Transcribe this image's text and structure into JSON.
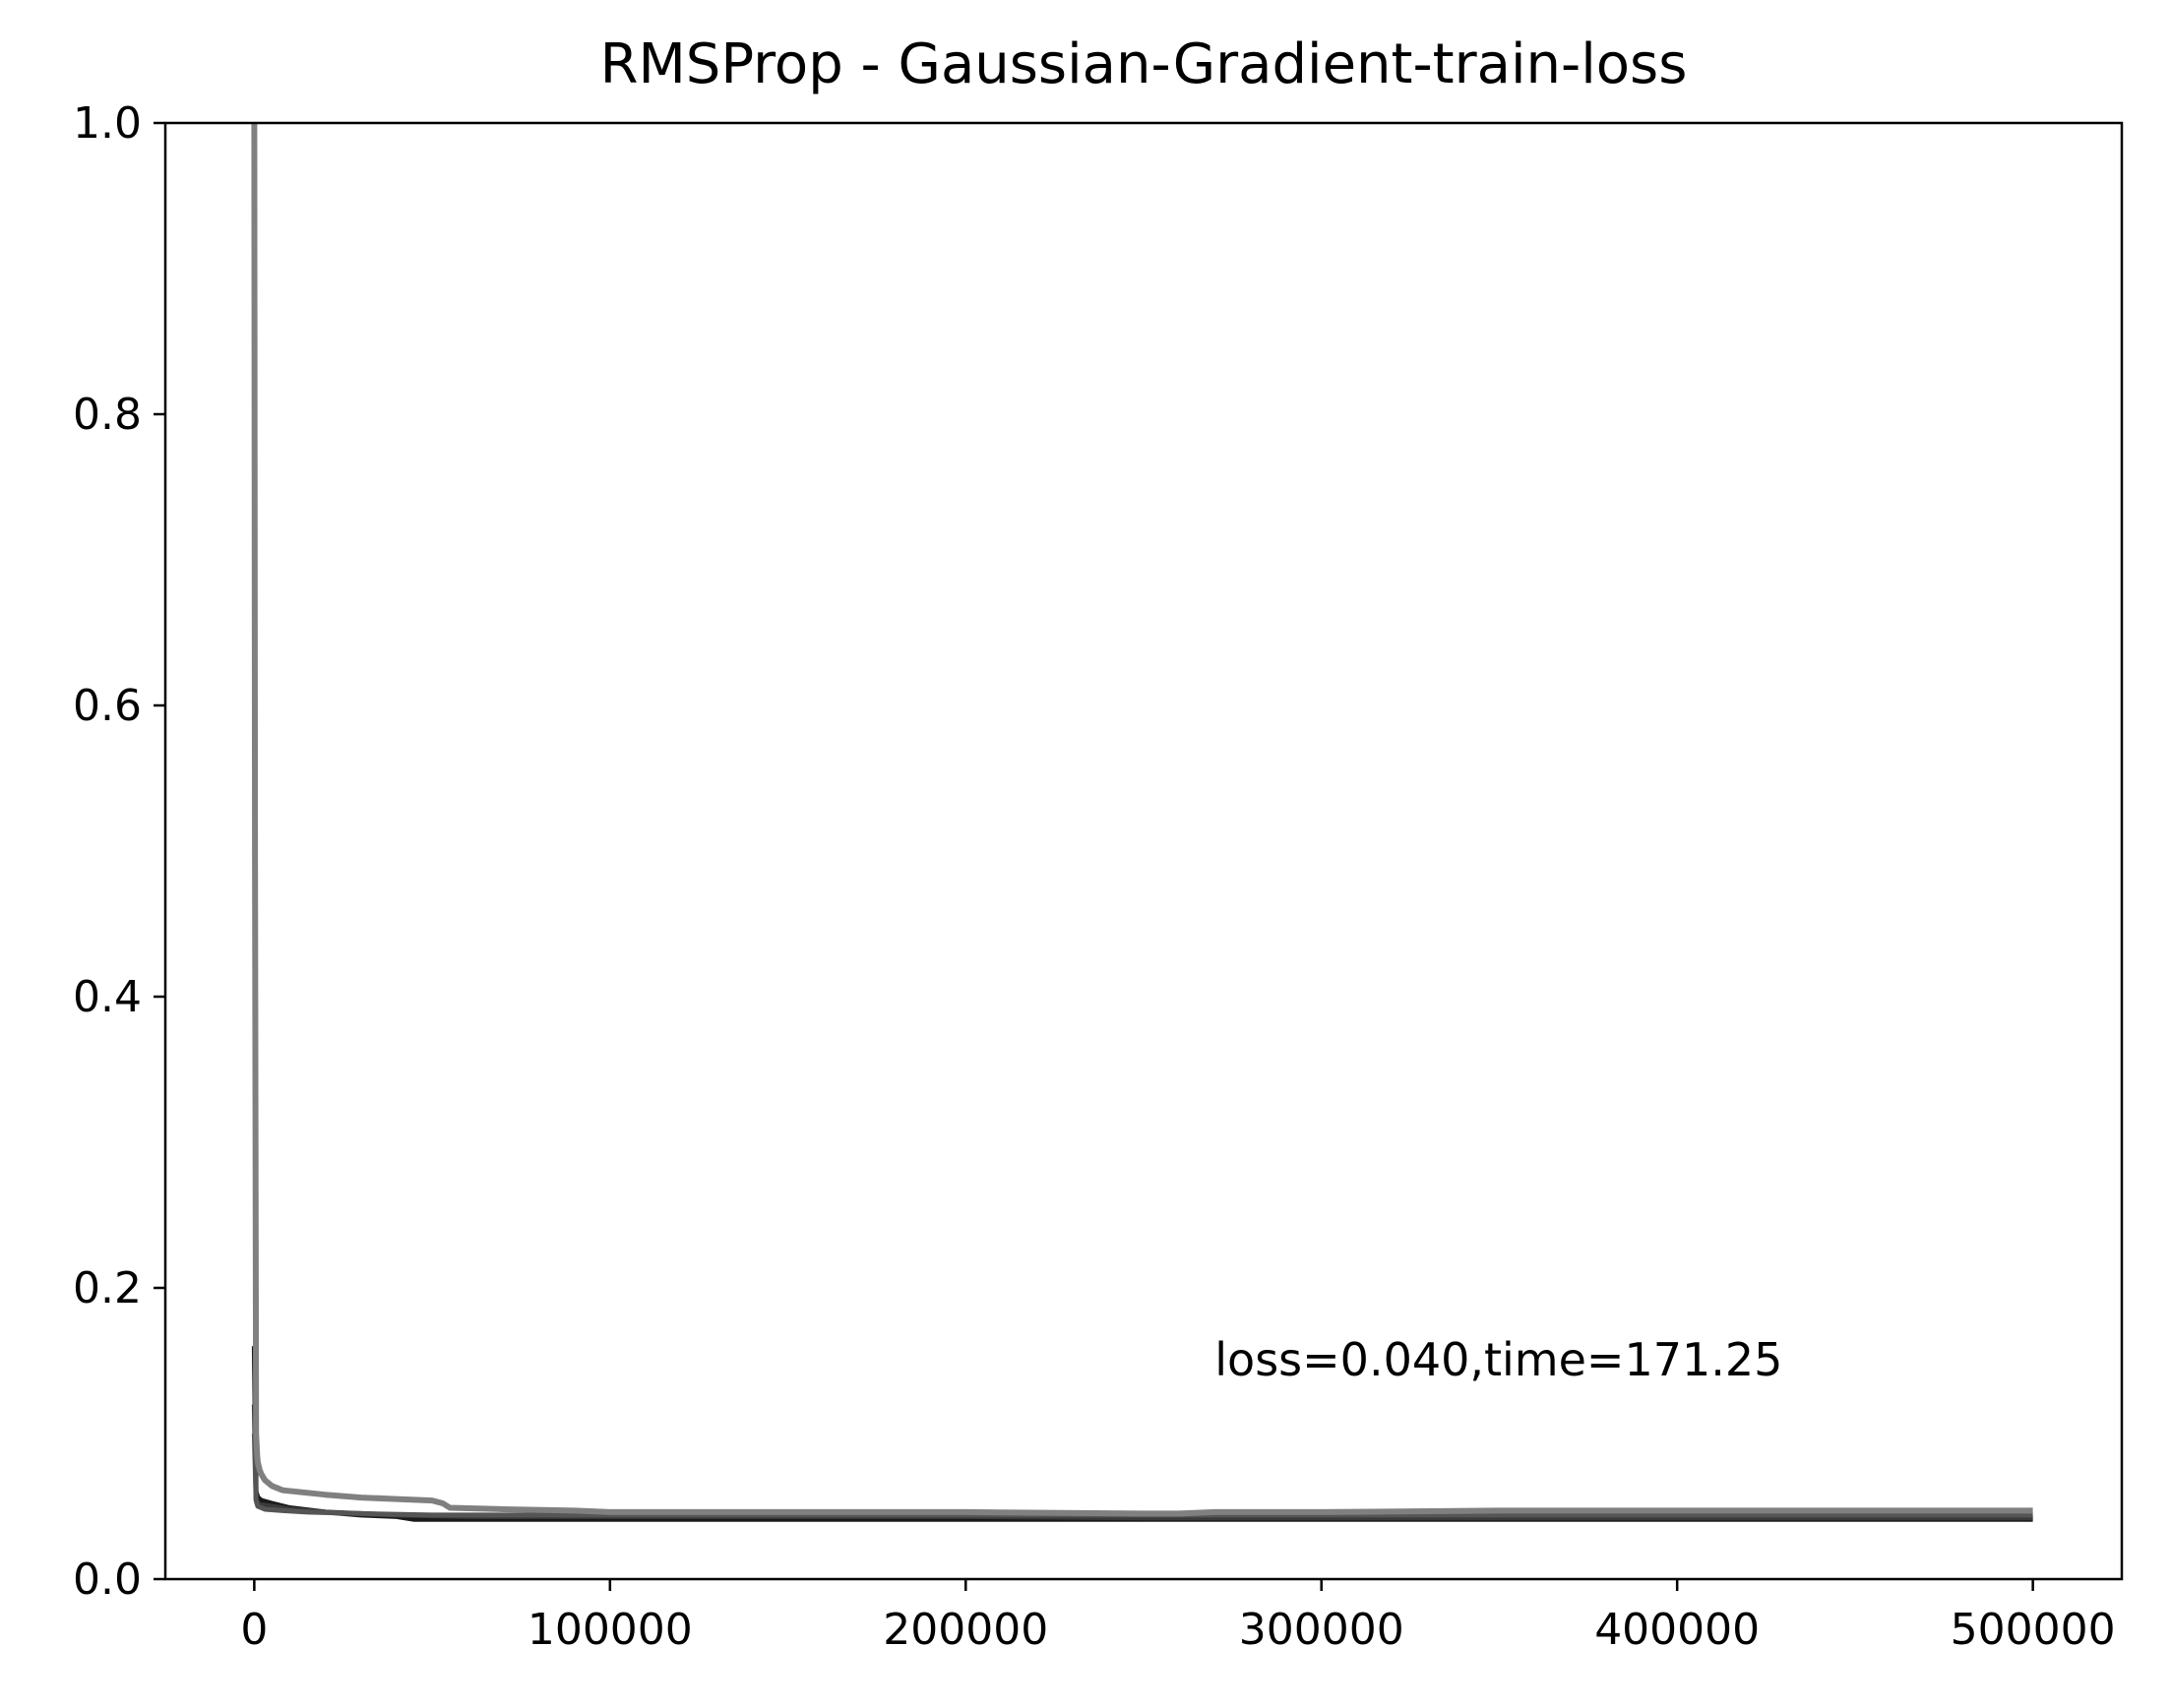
{
  "chart_data": {
    "type": "line",
    "title": "RMSProp - Gaussian-Gradient-train-loss",
    "xlabel": "",
    "ylabel": "",
    "xlim": [
      -25000,
      525000
    ],
    "ylim": [
      0,
      1.0
    ],
    "x_ticks": [
      0,
      100000,
      200000,
      300000,
      400000,
      500000
    ],
    "x_tick_labels": [
      "0",
      "100000",
      "200000",
      "300000",
      "400000",
      "500000"
    ],
    "y_ticks": [
      0.0,
      0.2,
      0.4,
      0.6,
      0.8,
      1.0
    ],
    "y_tick_labels": [
      "0.0",
      "0.2",
      "0.4",
      "0.6",
      "0.8",
      "1.0"
    ],
    "grid": false,
    "legend": "none",
    "annotation": {
      "text": "loss=0.040,time=171.25",
      "x": 270000,
      "y": 0.14
    },
    "series": [
      {
        "color": "#1a1a1a",
        "x": [
          0,
          500,
          1000,
          2000,
          5000,
          10000,
          20000,
          30000,
          40000,
          45000,
          60000,
          100000,
          150000,
          200000,
          250000,
          300000,
          350000,
          400000,
          450000,
          500000
        ],
        "y": [
          0.16,
          0.06,
          0.056,
          0.054,
          0.052,
          0.049,
          0.046,
          0.044,
          0.043,
          0.041,
          0.041,
          0.041,
          0.041,
          0.041,
          0.041,
          0.041,
          0.041,
          0.041,
          0.041,
          0.041
        ]
      },
      {
        "color": "#3a3a3a",
        "x": [
          0,
          500,
          1000,
          2000,
          5000,
          10000,
          20000,
          40000,
          60000,
          100000,
          150000,
          200000,
          250000,
          300000,
          350000,
          400000,
          450000,
          500000
        ],
        "y": [
          0.12,
          0.055,
          0.052,
          0.051,
          0.05,
          0.048,
          0.046,
          0.044,
          0.043,
          0.043,
          0.043,
          0.043,
          0.042,
          0.042,
          0.042,
          0.042,
          0.042,
          0.042
        ]
      },
      {
        "color": "#555555",
        "x": [
          0,
          500,
          1000,
          3000,
          8000,
          15000,
          30000,
          50000,
          100000,
          150000,
          200000,
          250000,
          300000,
          350000,
          400000,
          450000,
          500000
        ],
        "y": [
          0.1,
          0.054,
          0.05,
          0.048,
          0.047,
          0.046,
          0.045,
          0.044,
          0.044,
          0.044,
          0.044,
          0.044,
          0.044,
          0.044,
          0.044,
          0.044,
          0.044
        ]
      },
      {
        "color": "#808080",
        "x": [
          0,
          200,
          500,
          800,
          1000,
          1500,
          2000,
          3000,
          5000,
          8000,
          12000,
          20000,
          30000,
          40000,
          50000,
          53000,
          55000,
          70000,
          90000,
          100000,
          150000,
          200000,
          250000,
          260000,
          270000,
          300000,
          350000,
          400000,
          450000,
          500000
        ],
        "y": [
          1.0,
          0.5,
          0.1,
          0.085,
          0.08,
          0.075,
          0.072,
          0.068,
          0.064,
          0.061,
          0.06,
          0.058,
          0.056,
          0.055,
          0.054,
          0.052,
          0.049,
          0.048,
          0.047,
          0.046,
          0.046,
          0.046,
          0.045,
          0.045,
          0.046,
          0.046,
          0.047,
          0.047,
          0.047,
          0.047
        ]
      }
    ]
  }
}
